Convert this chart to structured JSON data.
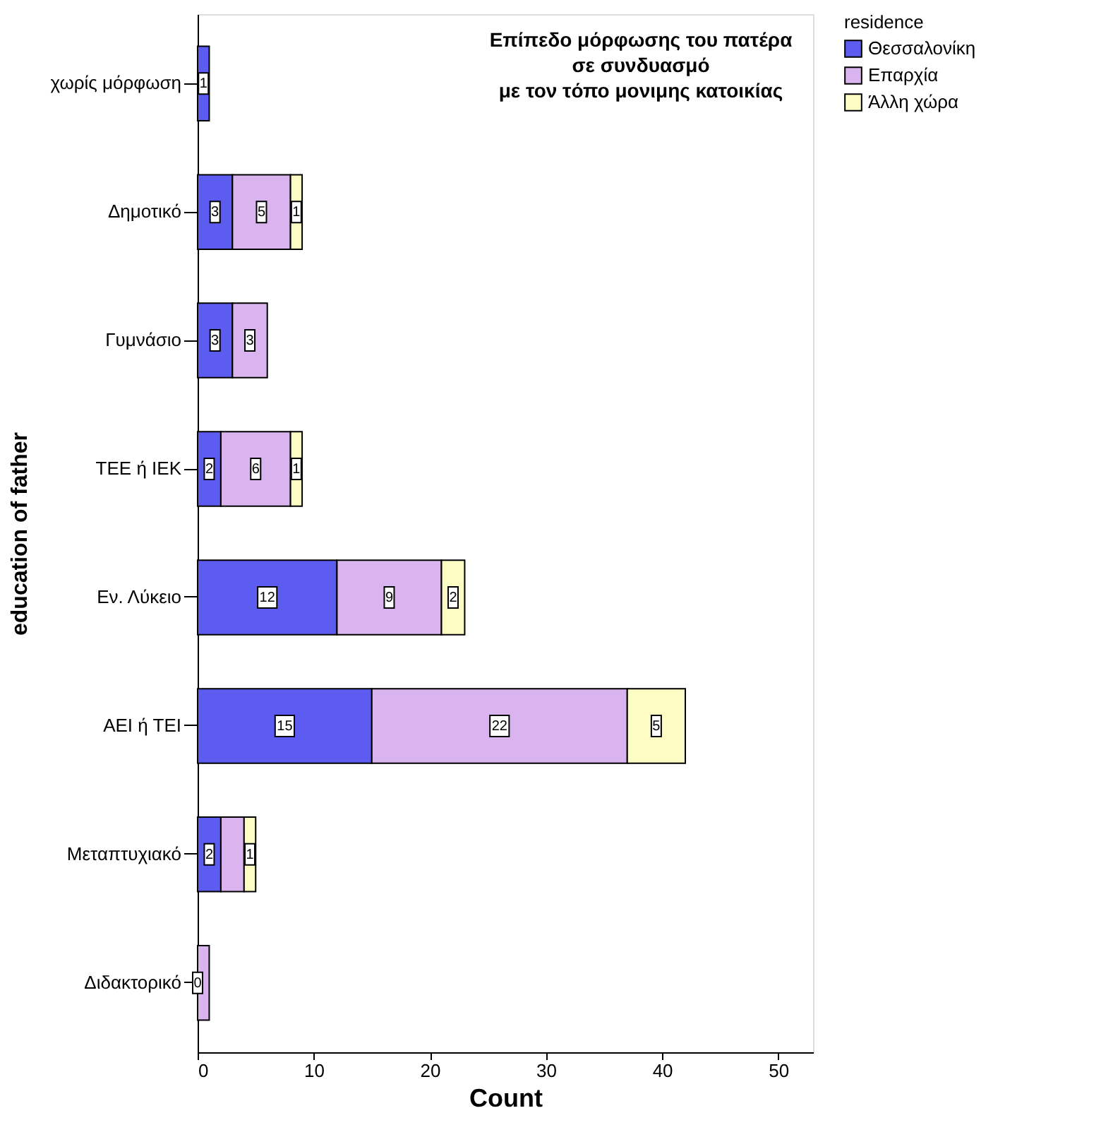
{
  "chart_data": {
    "type": "bar",
    "orientation": "horizontal",
    "stacked": true,
    "title": "Επίπεδο μόρφωσης του πατέρα\nσε συνδυασμό\nμε τον τόπο μονιμης κατοικίας",
    "xlabel": "Count",
    "ylabel": "education of father",
    "legend_title": "residence",
    "categories": [
      "χωρίς μόρφωση",
      "Δημοτικό",
      "Γυμνάσιο",
      "ΤΕΕ ή ΙΕΚ",
      "Εν. Λύκειο",
      "ΑΕΙ ή ΤΕΙ",
      "Μεταπτυχιακό",
      "Διδακτορικό"
    ],
    "series": [
      {
        "name": "Θεσσαλονίκη",
        "color": "#5c5cf0",
        "values": [
          1,
          3,
          3,
          2,
          12,
          15,
          2,
          0
        ],
        "value_labels": [
          "1",
          "3",
          "3",
          "2",
          "12",
          "15",
          "2",
          "0"
        ]
      },
      {
        "name": "Επαρχία",
        "color": "#dab4ee",
        "values": [
          0,
          5,
          3,
          6,
          9,
          22,
          2,
          1
        ],
        "value_labels": [
          null,
          "5",
          "3",
          "6",
          "9",
          "22",
          null,
          null
        ]
      },
      {
        "name": "Άλλη χώρα",
        "color": "#fcfcc4",
        "values": [
          0,
          1,
          0,
          1,
          2,
          5,
          1,
          0
        ],
        "value_labels": [
          null,
          "1",
          null,
          "1",
          "2",
          "5",
          "1",
          null
        ]
      }
    ],
    "xlim": [
      0,
      53
    ],
    "xticks": [
      0,
      10,
      20,
      30,
      40,
      50
    ],
    "grid": false,
    "legend": "top right"
  }
}
